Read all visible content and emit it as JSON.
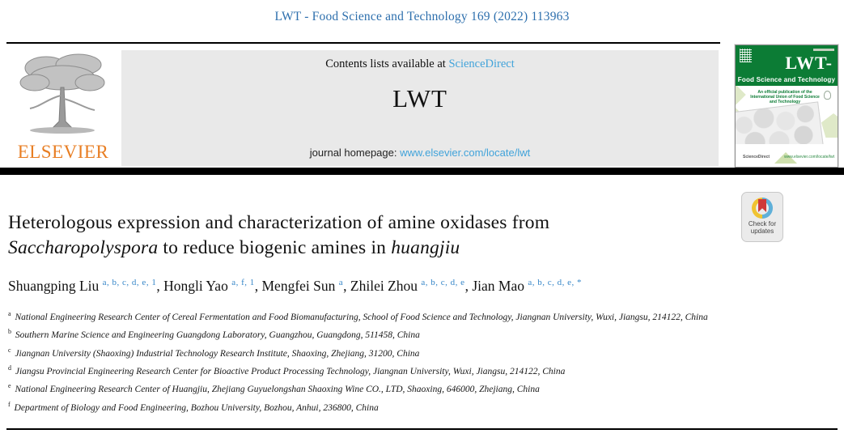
{
  "header": {
    "citation": "LWT - Food Science and Technology 169 (2022) 113963"
  },
  "masthead": {
    "publisher": "ELSEVIER",
    "contents_prefix": "Contents lists available at ",
    "sciencedirect_label": "ScienceDirect",
    "journal_title": "LWT",
    "homepage_prefix": "journal homepage: ",
    "homepage_url": "www.elsevier.com/locate/lwt"
  },
  "cover": {
    "title": "LWT-",
    "subtitle": "Food Science and Technology",
    "note": "An official publication of the International Union of Food Science and Technology",
    "sciencedirect": "ScienceDirect",
    "footer_url": "www.elsevier.com/locate/lwt"
  },
  "badge": {
    "label": "Check for updates"
  },
  "article": {
    "title": {
      "line1": "Heterologous expression and characterization of amine oxidases from",
      "line2_segments": [
        {
          "text": "Saccharopolyspora",
          "italic": true
        },
        {
          "text": " to reduce biogenic amines in ",
          "italic": false
        },
        {
          "text": "huangjiu",
          "italic": true
        }
      ]
    },
    "author_separator": ", ",
    "authors": [
      {
        "name": "Shuangping Liu",
        "sup": "a, b, c, d, e, 1"
      },
      {
        "name": "Hongli Yao",
        "sup": "a, f, 1"
      },
      {
        "name": "Mengfei Sun",
        "sup": "a"
      },
      {
        "name": "Zhilei Zhou",
        "sup": "a, b, c, d, e"
      },
      {
        "name": "Jian Mao",
        "sup": "a, b, c, d, e, *"
      }
    ],
    "affiliations": [
      {
        "label": "a",
        "text": "National Engineering Research Center of Cereal Fermentation and Food Biomanufacturing, School of Food Science and Technology, Jiangnan University, Wuxi, Jiangsu, 214122, China"
      },
      {
        "label": "b",
        "text": "Southern Marine Science and Engineering Guangdong Laboratory, Guangzhou, Guangdong, 511458, China"
      },
      {
        "label": "c",
        "text": "Jiangnan University (Shaoxing) Industrial Technology Research Institute, Shaoxing, Zhejiang, 31200, China"
      },
      {
        "label": "d",
        "text": "Jiangsu Provincial Engineering Research Center for Bioactive Product Processing Technology, Jiangnan University, Wuxi, Jiangsu, 214122, China"
      },
      {
        "label": "e",
        "text": "National Engineering Research Center of Huangjiu, Zhejiang Guyuelongshan Shaoxing Wine CO., LTD, Shaoxing, 646000, Zhejiang, China"
      },
      {
        "label": "f",
        "text": "Department of Biology and Food Engineering, Bozhou University, Bozhou, Anhui, 236800, China"
      }
    ]
  },
  "colors": {
    "citation_blue": "#2d6fad",
    "link_light_blue": "#41a3da",
    "superscript_blue": "#3686c8",
    "elsevier_orange": "#e87e23",
    "cover_green": "#0c7c35",
    "cover_light_green": "#dfe9c8",
    "banner_grey": "#e9e9e9",
    "badge_yellow": "#f0c332",
    "badge_blue": "#5fb0d9",
    "badge_red": "#cf3a3a"
  }
}
